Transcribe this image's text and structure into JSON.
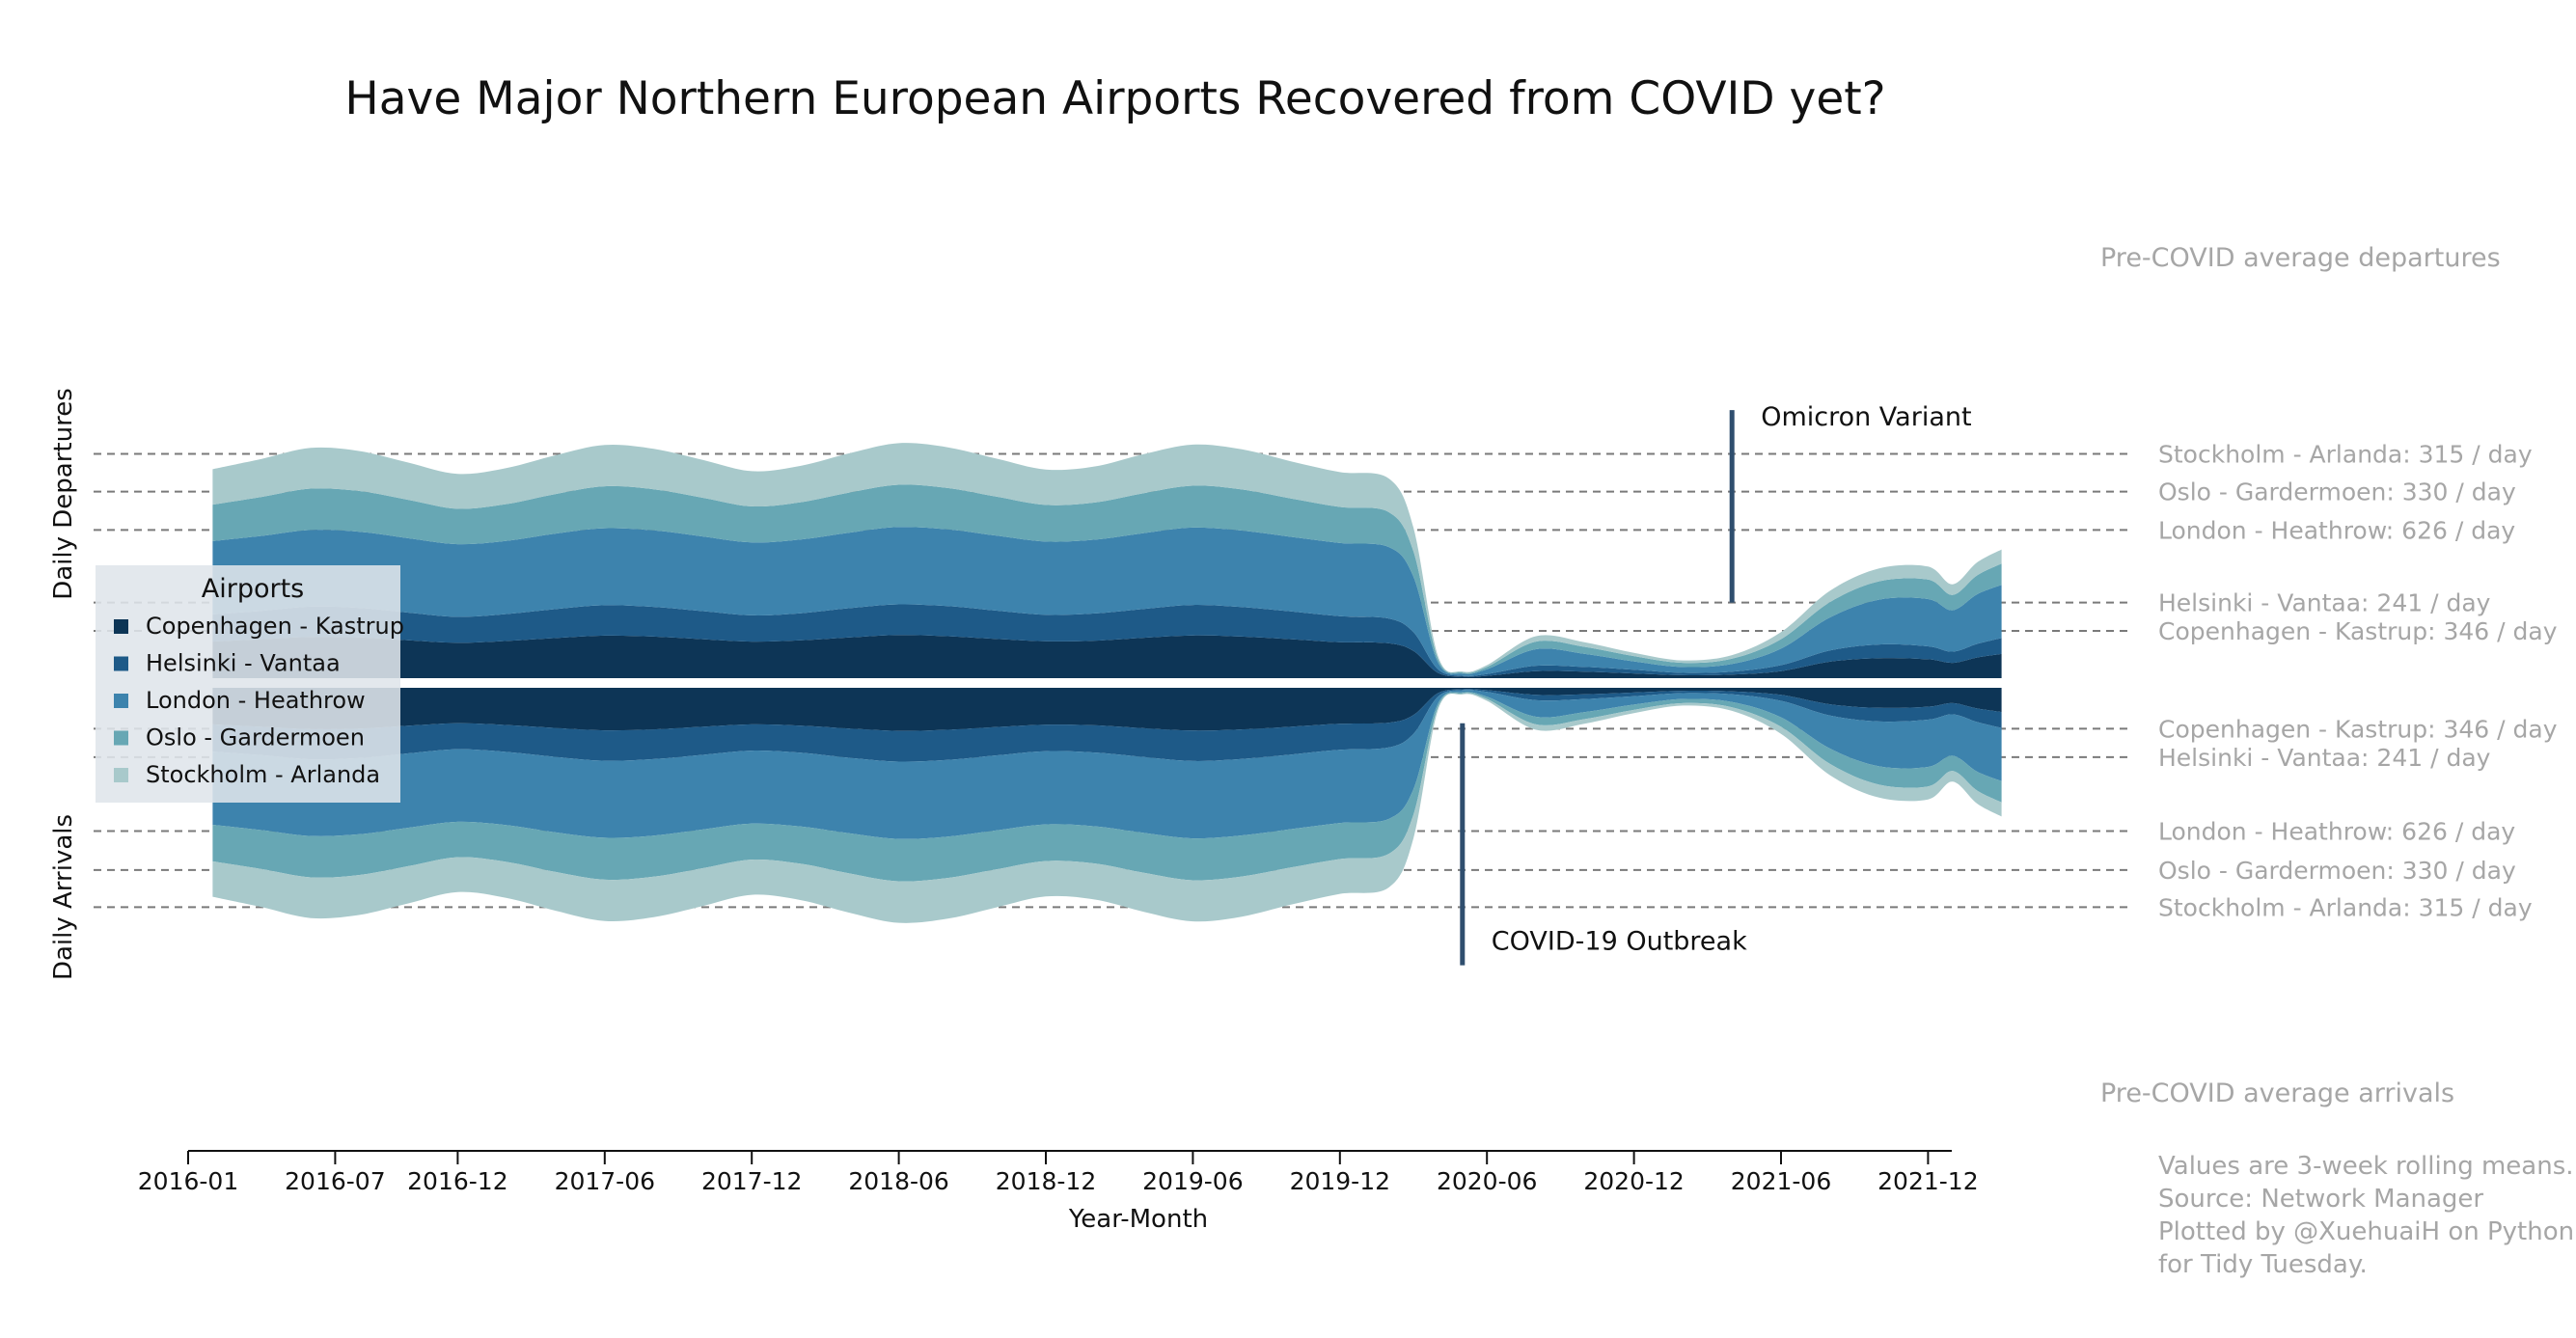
{
  "chart_data": {
    "type": "area",
    "title": "Have Major Northern European Airports Recovered from COVID yet?",
    "xlabel": "Year-Month",
    "ylabel_top": "Daily Departures",
    "ylabel_bottom": "Daily Arrivals",
    "x_ticks": [
      "2016-01",
      "2016-07",
      "2016-12",
      "2017-06",
      "2017-12",
      "2018-06",
      "2018-12",
      "2019-06",
      "2019-12",
      "2020-06",
      "2020-12",
      "2021-06",
      "2021-12"
    ],
    "legend": {
      "title": "Airports",
      "position": "left"
    },
    "colors": {
      "Copenhagen - Kastrup": "#0d3556",
      "Helsinki - Vantaa": "#1e5a88",
      "London - Heathrow": "#3d83ad",
      "Oslo - Gardermoen": "#67a7b4",
      "Stockholm - Arlanda": "#a8c9cb",
      "annotation_line": "#2f4e6e",
      "reference_text": "#a6a6a6",
      "reference_line": "#7a7a7a"
    },
    "x": [
      "2016-02",
      "2016-04",
      "2016-06",
      "2016-08",
      "2016-10",
      "2016-12",
      "2017-02",
      "2017-04",
      "2017-06",
      "2017-08",
      "2017-10",
      "2017-12",
      "2018-02",
      "2018-04",
      "2018-06",
      "2018-08",
      "2018-10",
      "2018-12",
      "2019-02",
      "2019-04",
      "2019-06",
      "2019-08",
      "2019-10",
      "2019-12",
      "2020-02",
      "2020-03",
      "2020-04",
      "2020-05",
      "2020-06",
      "2020-08",
      "2020-10",
      "2020-12",
      "2021-02",
      "2021-04",
      "2021-06",
      "2021-08",
      "2021-10",
      "2021-12",
      "2022-01",
      "2022-02",
      "2022-03"
    ],
    "departures": [
      {
        "name": "Copenhagen - Kastrup",
        "values": [
          310,
          330,
          350,
          345,
          320,
          300,
          315,
          340,
          360,
          352,
          330,
          310,
          320,
          345,
          365,
          355,
          332,
          312,
          318,
          342,
          362,
          352,
          330,
          305,
          295,
          230,
          45,
          12,
          20,
          60,
          55,
          40,
          25,
          30,
          60,
          140,
          170,
          160,
          130,
          175,
          205
        ]
      },
      {
        "name": "Helsinki - Vantaa",
        "values": [
          230,
          240,
          255,
          250,
          235,
          220,
          228,
          245,
          258,
          252,
          238,
          222,
          230,
          248,
          260,
          255,
          240,
          225,
          230,
          245,
          258,
          250,
          235,
          220,
          210,
          160,
          30,
          8,
          15,
          45,
          40,
          32,
          20,
          25,
          50,
          95,
          115,
          110,
          95,
          115,
          135
        ]
      },
      {
        "name": "London - Heathrow",
        "values": [
          620,
          635,
          650,
          645,
          630,
          615,
          620,
          640,
          652,
          648,
          632,
          618,
          625,
          640,
          655,
          650,
          635,
          620,
          625,
          642,
          655,
          648,
          632,
          620,
          605,
          470,
          60,
          18,
          40,
          140,
          110,
          70,
          50,
          65,
          140,
          280,
          380,
          400,
          350,
          420,
          450
        ]
      },
      {
        "name": "Oslo - Gardermoen",
        "values": [
          310,
          330,
          350,
          345,
          325,
          300,
          312,
          335,
          355,
          348,
          328,
          305,
          315,
          340,
          358,
          350,
          330,
          310,
          315,
          338,
          355,
          348,
          325,
          305,
          295,
          215,
          30,
          10,
          20,
          65,
          60,
          45,
          35,
          45,
          80,
          130,
          155,
          165,
          130,
          160,
          180
        ]
      },
      {
        "name": "Stockholm - Arlanda",
        "values": [
          300,
          322,
          345,
          338,
          315,
          295,
          305,
          328,
          350,
          342,
          320,
          298,
          308,
          332,
          352,
          345,
          322,
          300,
          305,
          330,
          348,
          340,
          315,
          295,
          285,
          200,
          25,
          8,
          15,
          45,
          38,
          28,
          20,
          30,
          60,
          95,
          110,
          110,
          90,
          110,
          120
        ]
      }
    ],
    "arrivals": [
      {
        "name": "Copenhagen - Kastrup",
        "values": [
          310,
          330,
          350,
          345,
          320,
          300,
          315,
          340,
          360,
          352,
          330,
          310,
          320,
          345,
          365,
          355,
          332,
          312,
          318,
          342,
          362,
          352,
          330,
          305,
          295,
          230,
          45,
          12,
          20,
          60,
          55,
          40,
          25,
          30,
          60,
          140,
          170,
          160,
          130,
          175,
          205
        ]
      },
      {
        "name": "Helsinki - Vantaa",
        "values": [
          230,
          240,
          255,
          250,
          235,
          220,
          228,
          245,
          258,
          252,
          238,
          222,
          230,
          248,
          260,
          255,
          240,
          225,
          230,
          245,
          258,
          250,
          235,
          220,
          210,
          160,
          30,
          8,
          15,
          45,
          40,
          32,
          20,
          25,
          50,
          95,
          115,
          110,
          95,
          115,
          135
        ]
      },
      {
        "name": "London - Heathrow",
        "values": [
          620,
          635,
          650,
          645,
          630,
          615,
          620,
          640,
          652,
          648,
          632,
          618,
          625,
          640,
          655,
          650,
          635,
          620,
          625,
          642,
          655,
          648,
          632,
          620,
          605,
          470,
          60,
          18,
          40,
          140,
          110,
          70,
          50,
          65,
          140,
          280,
          380,
          400,
          350,
          420,
          450
        ]
      },
      {
        "name": "Oslo - Gardermoen",
        "values": [
          310,
          330,
          350,
          345,
          325,
          300,
          312,
          335,
          355,
          348,
          328,
          305,
          315,
          340,
          358,
          350,
          330,
          310,
          315,
          338,
          355,
          348,
          325,
          305,
          295,
          215,
          30,
          10,
          20,
          65,
          60,
          45,
          35,
          45,
          80,
          130,
          155,
          165,
          130,
          160,
          180
        ]
      },
      {
        "name": "Stockholm - Arlanda",
        "values": [
          300,
          322,
          345,
          338,
          315,
          295,
          305,
          328,
          350,
          342,
          320,
          298,
          308,
          332,
          352,
          345,
          322,
          300,
          305,
          330,
          348,
          340,
          315,
          295,
          285,
          200,
          25,
          8,
          15,
          45,
          38,
          28,
          20,
          30,
          60,
          95,
          110,
          110,
          90,
          110,
          120
        ]
      }
    ],
    "reference_lines": {
      "departures_header": "Pre-COVID average departures",
      "arrivals_header": "Pre-COVID average arrivals",
      "departures": [
        {
          "label": "Stockholm - Arlanda: 315 / day",
          "value": 1900
        },
        {
          "label": "Oslo - Gardermoen: 330 / day",
          "value": 1580
        },
        {
          "label": "London - Heathrow: 626 / day",
          "value": 1255
        },
        {
          "label": "Helsinki - Vantaa: 241 / day",
          "value": 640
        },
        {
          "label": "Copenhagen - Kastrup: 346 / day",
          "value": 400
        }
      ],
      "arrivals": [
        {
          "label": "Copenhagen - Kastrup: 346 / day",
          "value": 346
        },
        {
          "label": "Helsinki - Vantaa: 241 / day",
          "value": 587
        },
        {
          "label": "London - Heathrow: 626 / day",
          "value": 1213
        },
        {
          "label": "Oslo - Gardermoen: 330 / day",
          "value": 1543
        },
        {
          "label": "Stockholm - Arlanda: 315 / day",
          "value": 1858
        }
      ]
    },
    "annotations": [
      {
        "label": "Omicron Variant",
        "x": "2021-04",
        "panel": "departures",
        "from": 640,
        "to": 2270
      },
      {
        "label": "COVID-19 Outbreak",
        "x": "2020-05",
        "panel": "arrivals",
        "from": 300,
        "to": 2350
      }
    ],
    "footnote": [
      "Values are 3-week rolling means.",
      "Source: Network Manager",
      "Plotted by @XuehuaiH on Python",
      "for Tidy Tuesday."
    ]
  }
}
